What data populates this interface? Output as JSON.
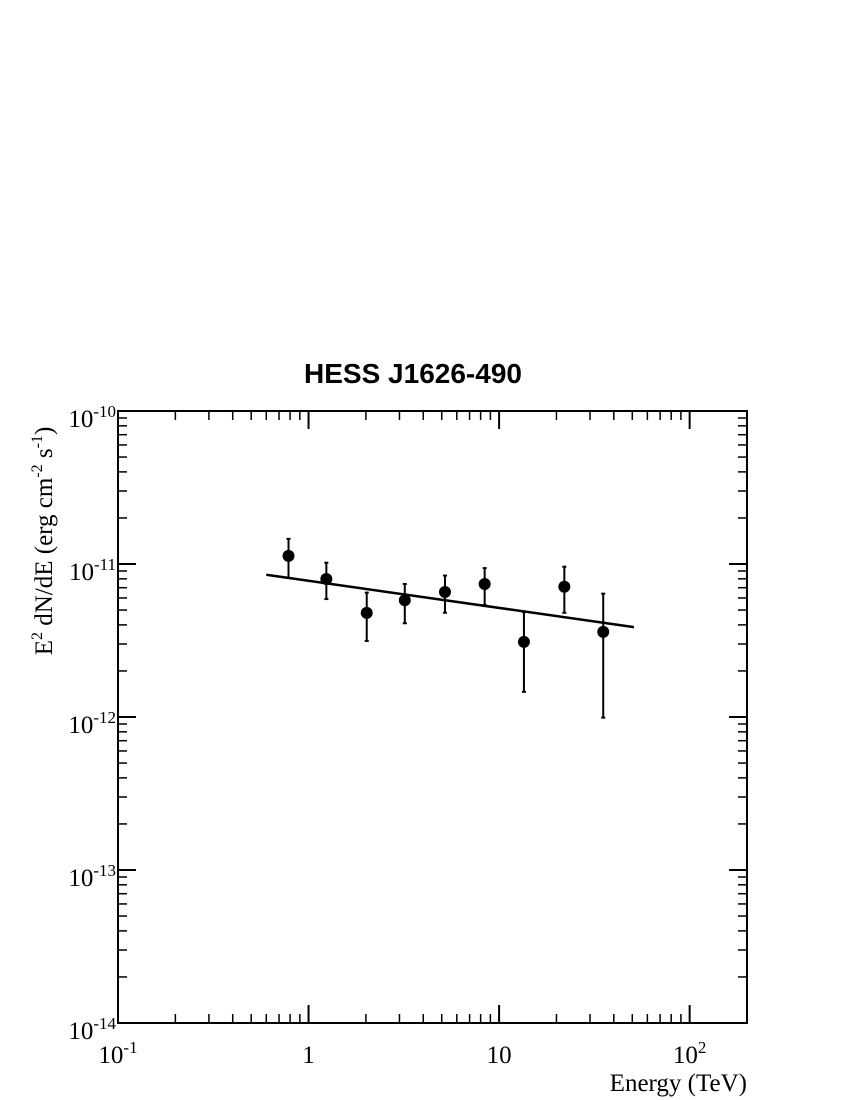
{
  "chart_data": {
    "type": "scatter",
    "title": "HESS J1626-490",
    "x_label": "Energy (TeV)",
    "y_label_parts": [
      "E",
      "2",
      " dN/dE (erg cm",
      "-2",
      " s",
      "-1",
      ")"
    ],
    "x_log": true,
    "y_log": true,
    "xlim": [
      0.1,
      200
    ],
    "ylim": [
      1e-14,
      1e-10
    ],
    "xticks": [
      {
        "value": 0.1,
        "label": "10",
        "exponent": "-1"
      },
      1,
      10,
      {
        "value": 100,
        "label": "10",
        "exponent": "2"
      }
    ],
    "yticks": [
      {
        "value": 1e-14,
        "label": "10",
        "exponent": "-14"
      },
      {
        "value": 1e-13,
        "label": "10",
        "exponent": "-13"
      },
      {
        "value": 1e-12,
        "label": "10",
        "exponent": "-12"
      },
      {
        "value": 1e-11,
        "label": "10",
        "exponent": "-11"
      },
      {
        "value": 1e-10,
        "label": "10",
        "exponent": "-10"
      }
    ],
    "color": "#000000",
    "x": [
      0.785,
      1.24,
      2.02,
      3.2,
      5.2,
      8.4,
      13.5,
      22,
      35.2
    ],
    "values": [
      1.13e-11,
      7.98e-12,
      4.79e-12,
      5.8e-12,
      6.56e-12,
      7.4e-12,
      3.1e-12,
      7.1e-12,
      3.6e-12
    ],
    "lower": [
      8.1e-12,
      5.9e-12,
      3.14e-12,
      4.1e-12,
      4.8e-12,
      5.4e-12,
      1.46e-12,
      4.8e-12,
      9.9e-13
    ],
    "upper": [
      1.46e-11,
      1.02e-11,
      6.5e-12,
      7.4e-12,
      8.4e-12,
      9.4e-12,
      4.85e-12,
      9.6e-12,
      6.4e-12
    ],
    "fit": {
      "type": "line",
      "x": [
        0.6,
        51
      ],
      "values": [
        8.5e-12,
        3.87e-12
      ]
    }
  }
}
